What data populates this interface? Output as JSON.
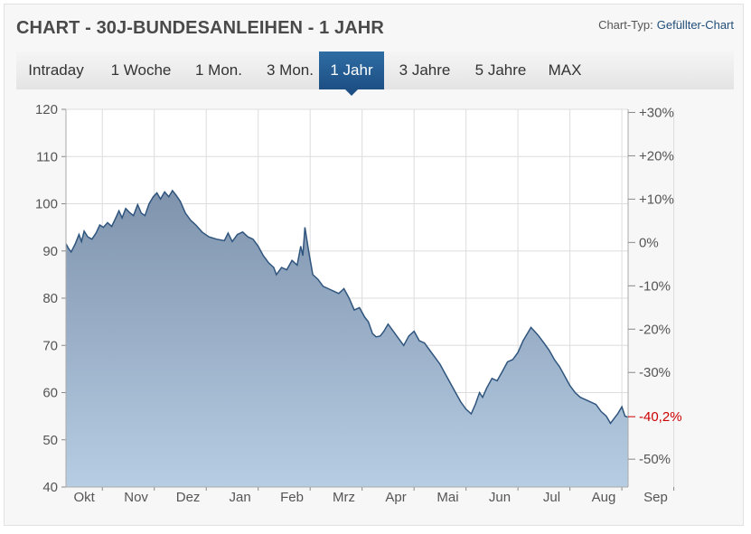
{
  "header": {
    "title": "CHART - 30J-BUNDESANLEIHEN - 1 JAHR",
    "chart_type_label": "Chart-Typ:",
    "chart_type_value": "Gefüllter-Chart"
  },
  "tabs": [
    {
      "label": "Intraday",
      "active": false
    },
    {
      "label": "1 Woche",
      "active": false
    },
    {
      "label": "1 Mon.",
      "active": false
    },
    {
      "label": "3 Mon.",
      "active": false
    },
    {
      "label": "1 Jahr",
      "active": true
    },
    {
      "label": "3 Jahre",
      "active": false
    },
    {
      "label": "5 Jahre",
      "active": false
    },
    {
      "label": "MAX",
      "active": false
    }
  ],
  "chart_data": {
    "type": "area",
    "title": "",
    "xlabel": "",
    "ylabel": "",
    "x_tick_labels": [
      "Okt",
      "Nov",
      "Dez",
      "Jan",
      "Feb",
      "Mrz",
      "Apr",
      "Mai",
      "Jun",
      "Jul",
      "Aug",
      "Sep"
    ],
    "ylim": [
      40,
      120
    ],
    "y_ticks": [
      40,
      50,
      60,
      70,
      80,
      90,
      100,
      110,
      120
    ],
    "y2_ticks": [
      "+30%",
      "+20%",
      "+10%",
      "0%",
      "-10%",
      "-20%",
      "-30%",
      "-40,2%",
      "-50%"
    ],
    "y2_ticks_values": [
      30,
      20,
      10,
      0,
      -10,
      -20,
      -30,
      -40.2,
      -50
    ],
    "y2_highlight": "-40,2%",
    "y2_base_value": 91.8,
    "grid": true,
    "legend": "none",
    "colors": {
      "line": "#2f557e",
      "fill_top": "#7f93ad",
      "fill_bottom": "#b6cde3",
      "highlight": "#cc0000",
      "grid": "#dddddd"
    },
    "series": [
      {
        "values": [
          [
            0,
            91.5
          ],
          [
            0.05,
            90.5
          ],
          [
            0.1,
            89.8
          ],
          [
            0.18,
            91.5
          ],
          [
            0.25,
            93.5
          ],
          [
            0.3,
            92.0
          ],
          [
            0.35,
            94.2
          ],
          [
            0.42,
            93.0
          ],
          [
            0.5,
            92.5
          ],
          [
            0.58,
            93.8
          ],
          [
            0.65,
            95.5
          ],
          [
            0.72,
            95.0
          ],
          [
            0.8,
            96.0
          ],
          [
            0.88,
            95.2
          ],
          [
            0.95,
            96.8
          ],
          [
            1.02,
            98.5
          ],
          [
            1.08,
            97.0
          ],
          [
            1.15,
            99.0
          ],
          [
            1.22,
            98.2
          ],
          [
            1.3,
            97.5
          ],
          [
            1.38,
            99.8
          ],
          [
            1.45,
            98.0
          ],
          [
            1.52,
            97.5
          ],
          [
            1.6,
            100.0
          ],
          [
            1.68,
            101.5
          ],
          [
            1.75,
            102.3
          ],
          [
            1.82,
            101.0
          ],
          [
            1.9,
            102.5
          ],
          [
            1.98,
            101.5
          ],
          [
            2.05,
            102.8
          ],
          [
            2.12,
            101.8
          ],
          [
            2.2,
            100.5
          ],
          [
            2.3,
            98.0
          ],
          [
            2.4,
            96.5
          ],
          [
            2.5,
            95.5
          ],
          [
            2.62,
            94.0
          ],
          [
            2.75,
            93.0
          ],
          [
            2.9,
            92.5
          ],
          [
            3.05,
            92.2
          ],
          [
            3.12,
            93.8
          ],
          [
            3.2,
            92.0
          ],
          [
            3.3,
            93.5
          ],
          [
            3.4,
            94.0
          ],
          [
            3.5,
            93.0
          ],
          [
            3.6,
            92.5
          ],
          [
            3.7,
            91.0
          ],
          [
            3.8,
            89.0
          ],
          [
            3.9,
            87.5
          ],
          [
            4.0,
            86.5
          ],
          [
            4.05,
            85.0
          ],
          [
            4.15,
            86.5
          ],
          [
            4.25,
            86.0
          ],
          [
            4.35,
            88.0
          ],
          [
            4.45,
            87.0
          ],
          [
            4.52,
            91.0
          ],
          [
            4.56,
            89.0
          ],
          [
            4.6,
            95.0
          ],
          [
            4.67,
            90.0
          ],
          [
            4.75,
            85.0
          ],
          [
            4.85,
            84.0
          ],
          [
            4.95,
            82.5
          ],
          [
            5.05,
            82.0
          ],
          [
            5.15,
            81.5
          ],
          [
            5.25,
            81.0
          ],
          [
            5.35,
            82.0
          ],
          [
            5.45,
            80.0
          ],
          [
            5.55,
            77.5
          ],
          [
            5.65,
            78.0
          ],
          [
            5.75,
            76.0
          ],
          [
            5.82,
            75.0
          ],
          [
            5.9,
            72.5
          ],
          [
            5.97,
            71.8
          ],
          [
            6.05,
            72.0
          ],
          [
            6.12,
            73.0
          ],
          [
            6.2,
            74.5
          ],
          [
            6.3,
            73.0
          ],
          [
            6.4,
            71.5
          ],
          [
            6.5,
            70.0
          ],
          [
            6.6,
            72.0
          ],
          [
            6.7,
            73.0
          ],
          [
            6.8,
            71.0
          ],
          [
            6.9,
            70.5
          ],
          [
            7.0,
            69.0
          ],
          [
            7.1,
            67.5
          ],
          [
            7.2,
            66.0
          ],
          [
            7.3,
            64.0
          ],
          [
            7.4,
            62.0
          ],
          [
            7.5,
            60.0
          ],
          [
            7.6,
            58.0
          ],
          [
            7.7,
            56.5
          ],
          [
            7.8,
            55.5
          ],
          [
            7.88,
            57.5
          ],
          [
            7.96,
            60.0
          ],
          [
            8.02,
            59.0
          ],
          [
            8.1,
            61.0
          ],
          [
            8.2,
            63.0
          ],
          [
            8.3,
            62.5
          ],
          [
            8.4,
            64.5
          ],
          [
            8.5,
            66.5
          ],
          [
            8.6,
            67.0
          ],
          [
            8.7,
            68.5
          ],
          [
            8.8,
            71.0
          ],
          [
            8.88,
            72.5
          ],
          [
            8.95,
            73.8
          ],
          [
            9.02,
            73.0
          ],
          [
            9.1,
            72.0
          ],
          [
            9.2,
            70.5
          ],
          [
            9.3,
            69.0
          ],
          [
            9.4,
            67.0
          ],
          [
            9.5,
            65.5
          ],
          [
            9.6,
            63.5
          ],
          [
            9.7,
            61.5
          ],
          [
            9.8,
            60.0
          ],
          [
            9.9,
            59.0
          ],
          [
            10.0,
            58.5
          ],
          [
            10.1,
            58.0
          ],
          [
            10.2,
            57.5
          ],
          [
            10.3,
            56.0
          ],
          [
            10.4,
            55.0
          ],
          [
            10.48,
            53.5
          ],
          [
            10.55,
            54.5
          ],
          [
            10.62,
            55.5
          ],
          [
            10.7,
            57.0
          ],
          [
            10.76,
            55.0
          ],
          [
            10.82,
            54.8
          ]
        ]
      }
    ]
  }
}
